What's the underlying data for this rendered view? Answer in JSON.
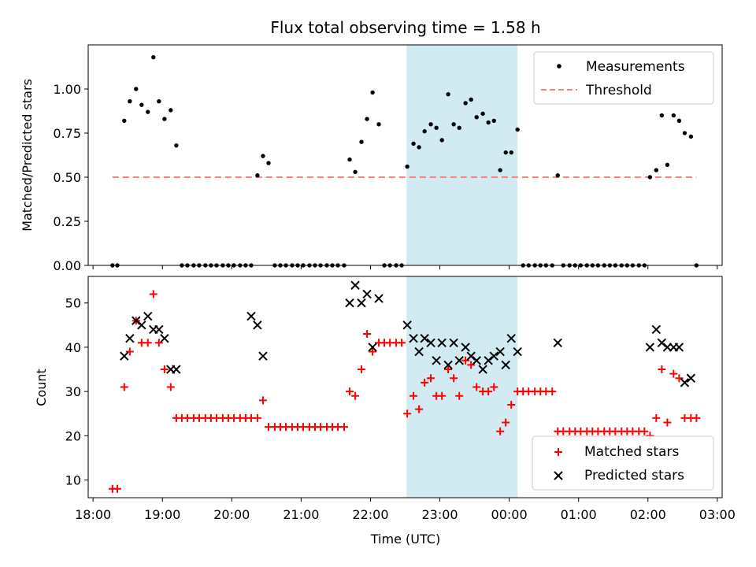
{
  "chart_data": [
    {
      "type": "scatter",
      "title": "Flux total observing time = 1.58 h",
      "ylabel": "Matched/Predicted stars",
      "xlabel": "",
      "x_unit": "hours since 18:00 UTC",
      "ylim": [
        0,
        1.25
      ],
      "yticks": [
        "0.00",
        "0.25",
        "0.50",
        "0.75",
        "1.00"
      ],
      "xticks_shown": false,
      "legend": {
        "placement": "top-right",
        "entries": [
          "Measurements",
          "Threshold"
        ]
      },
      "highlight_span": {
        "x_start": 4.52,
        "x_end": 6.12,
        "color": "#add8e6"
      },
      "series": [
        {
          "name": "Measurements",
          "marker": "dot",
          "color": "#000000",
          "x": [
            0.28,
            0.35,
            0.45,
            0.53,
            0.62,
            0.7,
            0.79,
            0.87,
            0.95,
            1.03,
            1.12,
            1.2,
            1.28,
            1.36,
            1.45,
            1.53,
            1.62,
            1.7,
            1.78,
            1.87,
            1.95,
            2.03,
            2.12,
            2.2,
            2.28,
            2.37,
            2.45,
            2.53,
            2.62,
            2.7,
            2.78,
            2.87,
            2.95,
            3.03,
            3.12,
            3.2,
            3.28,
            3.37,
            3.45,
            3.53,
            3.62,
            3.7,
            3.78,
            3.87,
            3.95,
            4.03,
            4.12,
            4.2,
            4.28,
            4.37,
            4.45,
            4.53,
            4.62,
            4.7,
            4.78,
            4.87,
            4.95,
            5.03,
            5.12,
            5.2,
            5.28,
            5.37,
            5.45,
            5.53,
            5.62,
            5.7,
            5.78,
            5.87,
            5.95,
            6.03,
            6.12,
            6.2,
            6.28,
            6.37,
            6.45,
            6.53,
            6.62,
            6.7,
            6.78,
            6.87,
            6.95,
            7.03,
            7.12,
            7.2,
            7.28,
            7.37,
            7.45,
            7.53,
            7.62,
            7.7,
            7.78,
            7.87,
            7.95,
            8.03,
            8.12,
            8.2,
            8.28,
            8.37,
            8.45,
            8.53,
            8.62,
            8.7
          ],
          "y": [
            0,
            0,
            0.82,
            0.93,
            1.0,
            0.91,
            0.87,
            1.18,
            0.93,
            0.83,
            0.88,
            0.68,
            0,
            0,
            0,
            0,
            0,
            0,
            0,
            0,
            0,
            0,
            0,
            0,
            0,
            0.51,
            0.62,
            0.58,
            0,
            0,
            0,
            0,
            0,
            0,
            0,
            0,
            0,
            0,
            0,
            0,
            0,
            0.6,
            0.53,
            0.7,
            0.83,
            0.98,
            0.8,
            0,
            0,
            0,
            0,
            0.56,
            0.69,
            0.67,
            0.76,
            0.8,
            0.78,
            0.71,
            0.97,
            0.8,
            0.78,
            0.92,
            0.94,
            0.84,
            0.86,
            0.81,
            0.82,
            0.54,
            0.64,
            0.64,
            0.77,
            0,
            0,
            0,
            0,
            0,
            0,
            0.51,
            0,
            0,
            0,
            0,
            0,
            0,
            0,
            0,
            0,
            0,
            0,
            0,
            0,
            0,
            0,
            0.5,
            0.54,
            0.85,
            0.57,
            0.85,
            0.82,
            0.75,
            0.73,
            0
          ]
        },
        {
          "name": "Threshold",
          "marker": "dashed-line",
          "color": "#ff7f7f",
          "x": [
            0.28,
            8.7
          ],
          "y": [
            0.5,
            0.5
          ]
        }
      ]
    },
    {
      "type": "scatter",
      "title": "",
      "ylabel": "Count",
      "xlabel": "Time (UTC)",
      "x_unit": "hours since 18:00 UTC",
      "ylim": [
        6,
        56
      ],
      "yticks": [
        "10",
        "20",
        "30",
        "40",
        "50"
      ],
      "xticks": [
        "18:00",
        "19:00",
        "20:00",
        "21:00",
        "22:00",
        "23:00",
        "00:00",
        "01:00",
        "02:00",
        "03:00"
      ],
      "legend": {
        "placement": "bottom-right",
        "entries": [
          "Matched stars",
          "Predicted stars"
        ]
      },
      "highlight_span": {
        "x_start": 4.52,
        "x_end": 6.12,
        "color": "#add8e6"
      },
      "series": [
        {
          "name": "Matched stars",
          "marker": "plus",
          "color": "#ff0000",
          "x": [
            0.28,
            0.35,
            0.45,
            0.53,
            0.62,
            0.7,
            0.79,
            0.87,
            0.95,
            1.03,
            1.12,
            1.2,
            1.28,
            1.36,
            1.45,
            1.53,
            1.62,
            1.7,
            1.78,
            1.87,
            1.95,
            2.03,
            2.12,
            2.2,
            2.28,
            2.37,
            2.45,
            2.53,
            2.62,
            2.7,
            2.78,
            2.87,
            2.95,
            3.03,
            3.12,
            3.2,
            3.28,
            3.37,
            3.45,
            3.53,
            3.62,
            3.7,
            3.78,
            3.87,
            3.95,
            4.03,
            4.12,
            4.2,
            4.28,
            4.37,
            4.45,
            4.53,
            4.62,
            4.7,
            4.78,
            4.87,
            4.95,
            5.03,
            5.12,
            5.2,
            5.28,
            5.37,
            5.45,
            5.53,
            5.62,
            5.7,
            5.78,
            5.87,
            5.95,
            6.03,
            6.12,
            6.2,
            6.28,
            6.37,
            6.45,
            6.53,
            6.62,
            6.7,
            6.78,
            6.87,
            6.95,
            7.03,
            7.12,
            7.2,
            7.28,
            7.37,
            7.45,
            7.53,
            7.62,
            7.7,
            7.78,
            7.87,
            7.95,
            8.03,
            8.12,
            8.2,
            8.28,
            8.37,
            8.45,
            8.53,
            8.62,
            8.7
          ],
          "y": [
            8,
            8,
            31,
            39,
            46,
            41,
            41,
            52,
            41,
            35,
            31,
            24,
            24,
            24,
            24,
            24,
            24,
            24,
            24,
            24,
            24,
            24,
            24,
            24,
            24,
            24,
            28,
            22,
            22,
            22,
            22,
            22,
            22,
            22,
            22,
            22,
            22,
            22,
            22,
            22,
            22,
            30,
            29,
            35,
            43,
            39,
            41,
            41,
            41,
            41,
            41,
            25,
            29,
            26,
            32,
            33,
            29,
            29,
            35,
            33,
            29,
            37,
            36,
            31,
            30,
            30,
            31,
            21,
            23,
            27,
            30,
            30,
            30,
            30,
            30,
            30,
            30,
            21,
            21,
            21,
            21,
            21,
            21,
            21,
            21,
            21,
            21,
            21,
            21,
            21,
            21,
            21,
            21,
            20,
            24,
            35,
            23,
            34,
            33,
            24,
            24,
            24
          ]
        },
        {
          "name": "Predicted stars",
          "marker": "x",
          "color": "#000000",
          "x": [
            0.45,
            0.53,
            0.62,
            0.7,
            0.79,
            0.87,
            0.95,
            1.03,
            1.12,
            1.2,
            2.28,
            2.37,
            2.45,
            3.7,
            3.78,
            3.87,
            3.95,
            4.03,
            4.12,
            4.53,
            4.62,
            4.7,
            4.78,
            4.87,
            4.95,
            5.03,
            5.12,
            5.2,
            5.28,
            5.37,
            5.45,
            5.53,
            5.62,
            5.7,
            5.78,
            5.87,
            5.95,
            6.03,
            6.12,
            6.7,
            8.03,
            8.12,
            8.2,
            8.28,
            8.37,
            8.45,
            8.53,
            8.62
          ],
          "y": [
            38,
            42,
            46,
            45,
            47,
            44,
            44,
            42,
            35,
            35,
            47,
            45,
            38,
            50,
            54,
            50,
            52,
            40,
            51,
            45,
            42,
            39,
            42,
            41,
            37,
            41,
            36,
            41,
            37,
            40,
            38,
            37,
            35,
            37,
            38,
            39,
            36,
            42,
            39,
            41,
            40,
            44,
            41,
            40,
            40,
            40,
            32,
            33
          ]
        }
      ]
    }
  ]
}
